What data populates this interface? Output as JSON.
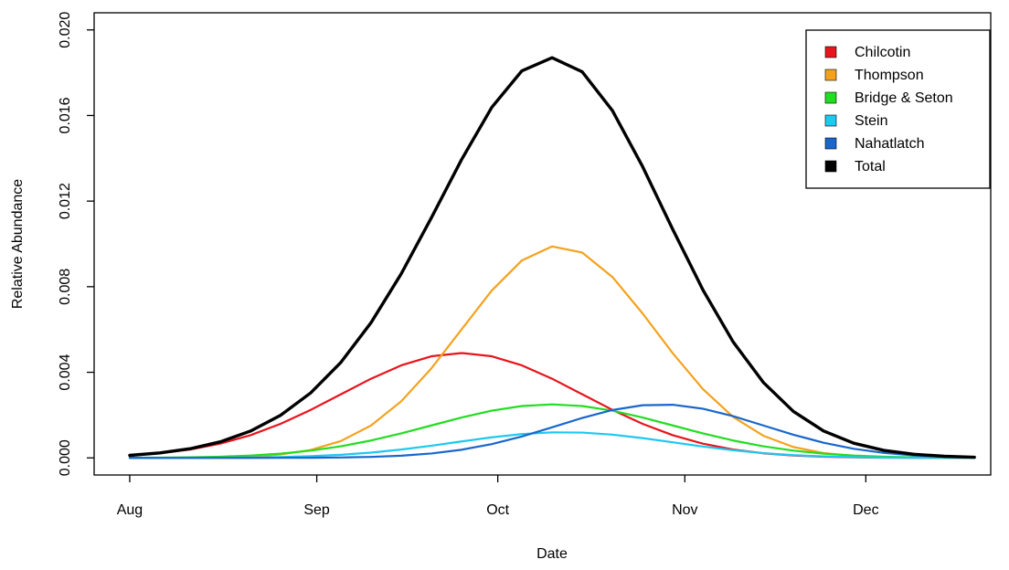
{
  "chart_data": {
    "type": "line",
    "x_label": "Date",
    "y_label": "Relative Abundance",
    "x": [
      0,
      5,
      10,
      15,
      20,
      25,
      30,
      35,
      40,
      45,
      50,
      55,
      60,
      65,
      70,
      75,
      80,
      85,
      90,
      95,
      100,
      105,
      110,
      115,
      120,
      125,
      130,
      135,
      140
    ],
    "xlim": [
      -5.9,
      142.7
    ],
    "xticks": [
      {
        "value": 0,
        "label": "Aug"
      },
      {
        "value": 31,
        "label": "Sep"
      },
      {
        "value": 61,
        "label": "Oct"
      },
      {
        "value": 92,
        "label": "Nov"
      },
      {
        "value": 122,
        "label": "Dec"
      }
    ],
    "ylim": [
      -0.0008,
      0.0208
    ],
    "yticks": [
      {
        "value": 0,
        "label": "0.000"
      },
      {
        "value": 0.004,
        "label": "0.004"
      },
      {
        "value": 0.008,
        "label": "0.008"
      },
      {
        "value": 0.012,
        "label": "0.012"
      },
      {
        "value": 0.016,
        "label": "0.016"
      },
      {
        "value": 0.02,
        "label": "0.020"
      }
    ],
    "legend": {
      "position": "topright"
    },
    "series": [
      {
        "name": "Chilcotin",
        "color": "#e8141c",
        "line_width": 2.2,
        "values": [
          0.000112,
          0.000215,
          0.00039,
          0.000663,
          0.00106,
          0.001591,
          0.002244,
          0.002972,
          0.0037,
          0.004324,
          0.004749,
          0.0049,
          0.004749,
          0.004324,
          0.0037,
          0.002972,
          0.002244,
          0.001591,
          0.00106,
          0.000663,
          0.00039,
          0.000215,
          0.000112,
          5.44e-05,
          2.49e-05,
          1.07e-05,
          4.3e-06,
          1.6e-06,
          6e-07
        ]
      },
      {
        "name": "Thompson",
        "color": "#f4a21d",
        "line_width": 2.2,
        "values": [
          5e-07,
          2e-06,
          6.9e-06,
          2.17e-05,
          6.16e-05,
          0.000158,
          0.000371,
          0.000788,
          0.001515,
          0.002644,
          0.004185,
          0.006004,
          0.007819,
          0.009228,
          0.009881,
          0.009595,
          0.008454,
          0.00675,
          0.004892,
          0.003215,
          0.001915,
          0.001036,
          0.000508,
          0.000226,
          9.11e-05,
          3.33e-05,
          1.1e-05,
          3.3e-06,
          9e-07
        ]
      },
      {
        "name": "Bridge & Seton",
        "color": "#22dd22",
        "line_width": 2.2,
        "values": [
          5.5e-06,
          1.27e-05,
          2.78e-05,
          5.7e-05,
          0.00011,
          0.000199,
          0.000338,
          0.000541,
          0.000812,
          0.001145,
          0.001516,
          0.001888,
          0.002206,
          0.002423,
          0.0025,
          0.002423,
          0.002206,
          0.001888,
          0.001516,
          0.001145,
          0.000812,
          0.000541,
          0.000338,
          0.000199,
          0.00011,
          5.7e-05,
          2.78e-05,
          1.27e-05,
          5.5e-06
        ]
      },
      {
        "name": "Stein",
        "color": "#1ec8f0",
        "line_width": 2.2,
        "values": [
          4e-07,
          1.2e-06,
          3.2e-06,
          8e-06,
          1.85e-05,
          3.97e-05,
          7.88e-05,
          0.000145,
          0.000247,
          0.00039,
          0.000569,
          0.000768,
          0.000961,
          0.001113,
          0.001193,
          0.001183,
          0.001087,
          0.000924,
          0.000728,
          0.000531,
          0.000358,
          0.000223,
          0.000129,
          6.92e-05,
          3.43e-05,
          1.57e-05,
          6.7e-06,
          2.6e-06,
          1e-06
        ]
      },
      {
        "name": "Nahatlatch",
        "color": "#1a66cc",
        "line_width": 2.2,
        "values": [
          0,
          0,
          1e-07,
          2e-07,
          8e-07,
          2.6e-06,
          7.4e-06,
          1.94e-05,
          4.65e-05,
          0.000102,
          0.000206,
          0.00038,
          0.000644,
          0.001001,
          0.001427,
          0.001867,
          0.002237,
          0.002461,
          0.002483,
          0.002297,
          0.001949,
          0.001516,
          0.001083,
          0.000709,
          0.000425,
          0.000234,
          0.000118,
          5.48e-05,
          2.33e-05
        ]
      },
      {
        "name": "Total",
        "color": "#000000",
        "line_width": 3.4,
        "values": [
          0.000118,
          0.000231,
          0.000428,
          0.00075,
          0.001251,
          0.00199,
          0.003039,
          0.004466,
          0.006321,
          0.008605,
          0.011225,
          0.01394,
          0.016379,
          0.018089,
          0.018701,
          0.01804,
          0.016228,
          0.013614,
          0.010679,
          0.007851,
          0.005424,
          0.003531,
          0.00217,
          0.001258,
          0.000685,
          0.000351,
          0.000168,
          7.5e-05,
          3.13e-05
        ]
      }
    ]
  }
}
